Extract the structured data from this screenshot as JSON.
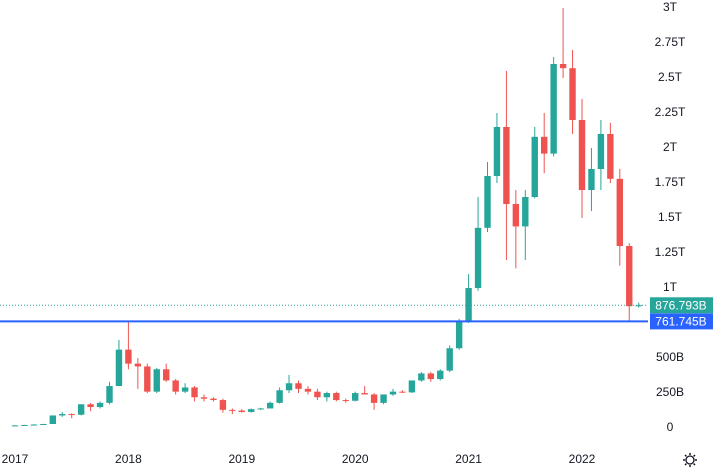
{
  "chart_data": {
    "type": "candlestick",
    "categories": [
      "2017",
      null,
      null,
      null,
      null,
      null,
      null,
      null,
      null,
      null,
      null,
      null,
      "2018",
      null,
      null,
      null,
      null,
      null,
      null,
      null,
      null,
      null,
      null,
      null,
      "2019",
      null,
      null,
      null,
      null,
      null,
      null,
      null,
      null,
      null,
      null,
      null,
      "2020",
      null,
      null,
      null,
      null,
      null,
      null,
      null,
      null,
      null,
      null,
      null,
      "2021",
      null,
      null,
      null,
      null,
      null,
      null,
      null,
      null,
      null,
      null,
      null,
      "2022",
      null,
      null,
      null,
      null,
      null,
      null
    ],
    "open": [
      18,
      19,
      22,
      25,
      29,
      90,
      100,
      95,
      170,
      150,
      180,
      300,
      560,
      460,
      440,
      260,
      420,
      340,
      260,
      290,
      220,
      210,
      200,
      130,
      125,
      115,
      135,
      140,
      180,
      270,
      320,
      280,
      260,
      220,
      250,
      200,
      195,
      250,
      240,
      180,
      240,
      260,
      255,
      340,
      390,
      350,
      410,
      570,
      760,
      1000,
      1430,
      1800,
      2150,
      1600,
      1440,
      1650,
      2080,
      1960,
      2600,
      2570,
      2200,
      1700,
      1850,
      2100,
      1780,
      1300,
      870
    ],
    "high": [
      20,
      23,
      28,
      30,
      90,
      115,
      105,
      170,
      180,
      190,
      330,
      630,
      760,
      500,
      460,
      430,
      460,
      350,
      320,
      300,
      240,
      220,
      210,
      140,
      135,
      140,
      145,
      190,
      290,
      380,
      340,
      300,
      280,
      260,
      260,
      210,
      260,
      300,
      250,
      240,
      280,
      270,
      340,
      400,
      400,
      420,
      590,
      780,
      1100,
      1650,
      1900,
      2250,
      2550,
      1700,
      1700,
      2150,
      2250,
      2650,
      3000,
      2700,
      2350,
      2000,
      2200,
      2180,
      1850,
      1320,
      895
    ],
    "low": [
      16,
      18,
      20,
      24,
      29,
      80,
      70,
      90,
      120,
      140,
      170,
      300,
      420,
      280,
      250,
      250,
      330,
      240,
      250,
      190,
      190,
      190,
      110,
      100,
      110,
      110,
      130,
      140,
      175,
      250,
      250,
      240,
      200,
      190,
      190,
      180,
      190,
      240,
      130,
      170,
      230,
      250,
      250,
      330,
      330,
      340,
      400,
      560,
      750,
      980,
      1400,
      1750,
      1200,
      1140,
      1200,
      1640,
      1820,
      1940,
      2500,
      2100,
      1500,
      1550,
      1700,
      1750,
      1160,
      765,
      860
    ],
    "close": [
      19,
      22,
      25,
      29,
      90,
      100,
      95,
      170,
      150,
      180,
      300,
      560,
      460,
      440,
      260,
      420,
      340,
      260,
      290,
      220,
      210,
      200,
      130,
      125,
      115,
      135,
      140,
      180,
      270,
      320,
      280,
      260,
      220,
      250,
      200,
      195,
      250,
      240,
      180,
      240,
      260,
      255,
      340,
      390,
      350,
      410,
      570,
      760,
      1000,
      1430,
      1800,
      2150,
      1600,
      1440,
      1650,
      2080,
      1960,
      2600,
      2570,
      2200,
      1700,
      1850,
      2100,
      1780,
      1300,
      870,
      876.793
    ],
    "up_color": "#26a69a",
    "down_color": "#ef5350",
    "ylim": [
      -121,
      3057
    ],
    "yticks": [
      0,
      {
        "value": 250,
        "label": "250B"
      },
      {
        "value": 500,
        "label": "500B"
      },
      {
        "value": 1000,
        "label": "1T"
      },
      {
        "value": 1250,
        "label": "1.25T"
      },
      {
        "value": 1500,
        "label": "1.5T"
      },
      {
        "value": 1750,
        "label": "1.75T"
      },
      {
        "value": 2000,
        "label": "2T"
      },
      {
        "value": 2250,
        "label": "2.25T"
      },
      {
        "value": 2500,
        "label": "2.5T"
      },
      {
        "value": 2750,
        "label": "2.75T"
      },
      {
        "value": 3000,
        "label": "3T"
      }
    ],
    "grid": false,
    "price_lines": [
      {
        "value": 876.793,
        "label": "876.793B",
        "color": "#26a69a",
        "style": "dotted"
      },
      {
        "value": 761.745,
        "label": "761.745B",
        "color": "#2962ff",
        "style": "solid"
      }
    ]
  }
}
